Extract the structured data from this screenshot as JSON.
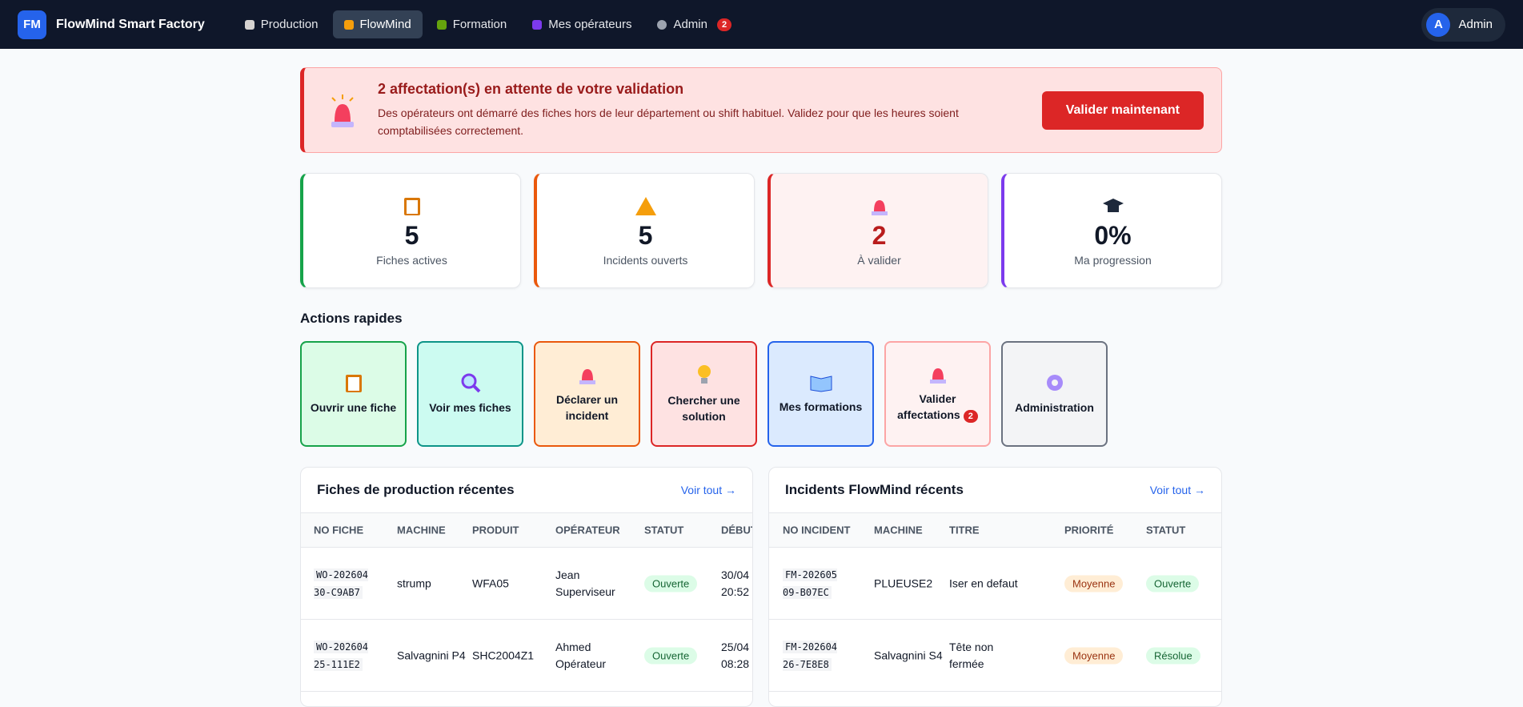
{
  "nav": {
    "logo": "FM",
    "brand": "FlowMind Smart Factory",
    "items": [
      "Production",
      "FlowMind",
      "Formation",
      "Mes opérateurs",
      "Admin"
    ],
    "admin_badge": 2,
    "user_initial": "A",
    "user": "Admin"
  },
  "alert": {
    "title": "2 affectation(s) en attente de votre validation",
    "text": "Des opérateurs ont démarré des fiches hors de leur département ou shift habituel. Validez pour que les heures soient comptabilisées correctement.",
    "button": "Valider maintenant"
  },
  "stats": [
    {
      "value": 5,
      "label": "Fiches actives"
    },
    {
      "value": 5,
      "label": "Incidents ouverts"
    },
    {
      "value": 2,
      "label": "À valider"
    },
    {
      "value": "0%",
      "label": "Ma progression"
    }
  ],
  "actions": {
    "title": "Actions rapides",
    "items": [
      {
        "label": "Ouvrir une fiche"
      },
      {
        "label": "Voir mes fiches"
      },
      {
        "label": "Déclarer un incident"
      },
      {
        "label": "Chercher une solution"
      },
      {
        "label": "Mes formations"
      },
      {
        "label": "Valider affectations",
        "badge": 2
      },
      {
        "label": "Administration"
      }
    ]
  },
  "tables": [
    {
      "title": "Fiches de production récentes",
      "link": "Voir tout →",
      "columns": [
        "NO FICHE",
        "MACHINE",
        "PRODUIT",
        "OPÉRATEUR",
        "STATUT",
        "DÉBUT"
      ],
      "rows": [
        [
          "WO-20260430-C9AB7",
          "strump",
          "WFA05",
          "Jean Superviseur",
          "Ouverte",
          "30/04 20:52"
        ],
        [
          "WO-20260425-111E2",
          "Salvagnini P4",
          "SHC2004Z1",
          "Ahmed Opérateur",
          "Ouverte",
          "25/04 08:28"
        ]
      ]
    },
    {
      "title": "Incidents FlowMind récents",
      "link": "Voir tout →",
      "columns": [
        "NO INCIDENT",
        "MACHINE",
        "TITRE",
        "PRIORITÉ",
        "STATUT"
      ],
      "rows": [
        [
          "FM-20260509-B07EC",
          "PLUEUSE2",
          "Iser en defaut",
          "Moyenne",
          "Ouverte"
        ],
        [
          "FM-20260426-7E8E8",
          "Salvagnini S4",
          "Tête non fermée",
          "Moyenne",
          "Résolue"
        ]
      ]
    }
  ]
}
